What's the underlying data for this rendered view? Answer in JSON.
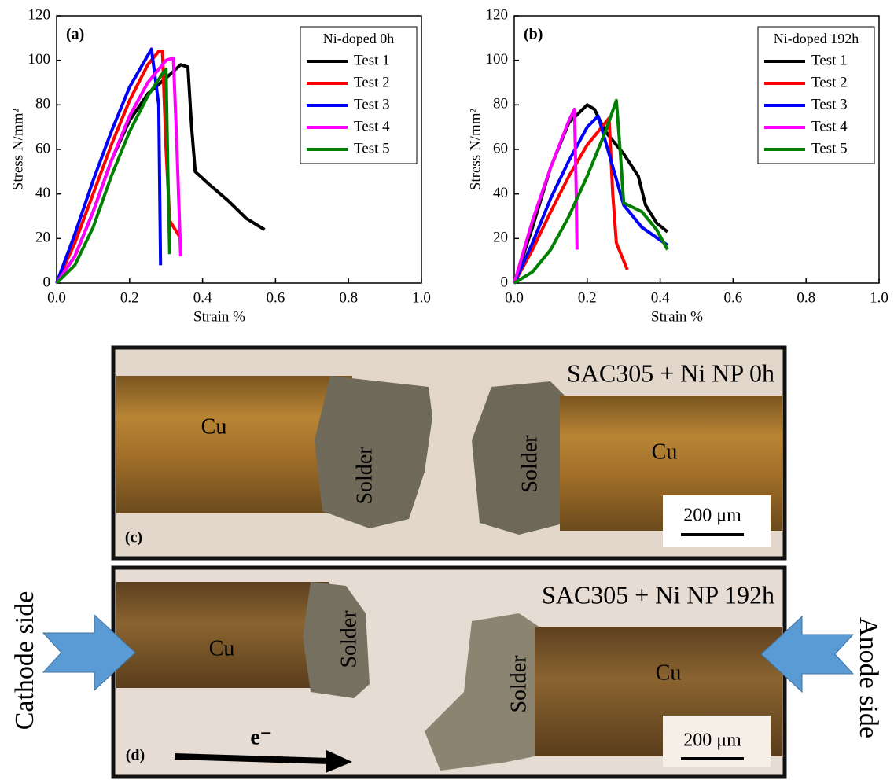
{
  "chart_data": [
    {
      "type": "line",
      "panel": "(a)",
      "legend_title": "Ni-doped 0h",
      "xlabel": "Strain %",
      "ylabel": "Stress N/mm²",
      "xlim": [
        0,
        1
      ],
      "xticks": [
        {
          "value": 0,
          "label": "0.0"
        },
        0.2,
        0.4,
        0.6,
        0.8,
        {
          "value": 1,
          "label": "1.0"
        }
      ],
      "ylim": [
        0,
        120
      ],
      "yticks": [
        0,
        20,
        40,
        60,
        80,
        100,
        120
      ],
      "legend": "upper right",
      "series": [
        {
          "name": "Test 1",
          "color": "#000000",
          "x": [
            0,
            0.05,
            0.1,
            0.15,
            0.2,
            0.25,
            0.3,
            0.34,
            0.36,
            0.37,
            0.38,
            0.42,
            0.47,
            0.52,
            0.57
          ],
          "values": [
            0,
            12,
            32,
            55,
            73,
            85,
            92,
            98,
            97,
            70,
            50,
            44,
            37,
            29,
            24
          ]
        },
        {
          "name": "Test 2",
          "color": "#ff0000",
          "x": [
            0,
            0.05,
            0.1,
            0.15,
            0.2,
            0.25,
            0.28,
            0.29,
            0.3,
            0.31,
            0.34
          ],
          "values": [
            0,
            18,
            40,
            62,
            82,
            98,
            104,
            104,
            60,
            28,
            20
          ]
        },
        {
          "name": "Test 3",
          "color": "#0000ff",
          "x": [
            0,
            0.05,
            0.1,
            0.15,
            0.2,
            0.26,
            0.28,
            0.285
          ],
          "values": [
            0,
            22,
            46,
            68,
            88,
            105,
            80,
            8
          ]
        },
        {
          "name": "Test 4",
          "color": "#ff00ff",
          "x": [
            0,
            0.05,
            0.1,
            0.15,
            0.2,
            0.25,
            0.3,
            0.32,
            0.33,
            0.34
          ],
          "values": [
            0,
            12,
            32,
            55,
            75,
            90,
            100,
            101,
            60,
            12
          ]
        },
        {
          "name": "Test 5",
          "color": "#008000",
          "x": [
            0,
            0.05,
            0.1,
            0.15,
            0.2,
            0.25,
            0.29,
            0.3,
            0.305,
            0.31
          ],
          "values": [
            0,
            8,
            25,
            48,
            68,
            84,
            94,
            96,
            50,
            13
          ]
        }
      ]
    },
    {
      "type": "line",
      "panel": "(b)",
      "legend_title": "Ni-doped 192h",
      "xlabel": "Strain %",
      "ylabel": "Stress N/mm²",
      "xlim": [
        0,
        1
      ],
      "xticks": [
        {
          "value": 0,
          "label": "0.0"
        },
        0.2,
        0.4,
        0.6,
        0.8,
        {
          "value": 1,
          "label": "1.0"
        }
      ],
      "ylim": [
        0,
        120
      ],
      "yticks": [
        0,
        20,
        40,
        60,
        80,
        100,
        120
      ],
      "legend": "upper right",
      "series": [
        {
          "name": "Test 1",
          "color": "#000000",
          "x": [
            0,
            0.05,
            0.1,
            0.15,
            0.2,
            0.22,
            0.25,
            0.3,
            0.34,
            0.36,
            0.39,
            0.42
          ],
          "values": [
            0,
            25,
            52,
            72,
            80,
            78,
            68,
            58,
            48,
            35,
            27,
            23
          ]
        },
        {
          "name": "Test 2",
          "color": "#ff0000",
          "x": [
            0,
            0.05,
            0.1,
            0.15,
            0.2,
            0.25,
            0.26,
            0.27,
            0.28,
            0.31
          ],
          "values": [
            0,
            15,
            32,
            48,
            62,
            72,
            74,
            40,
            18,
            6
          ]
        },
        {
          "name": "Test 3",
          "color": "#0000ff",
          "x": [
            0,
            0.05,
            0.1,
            0.15,
            0.2,
            0.23,
            0.26,
            0.3,
            0.35,
            0.42
          ],
          "values": [
            0,
            18,
            38,
            55,
            70,
            75,
            58,
            35,
            25,
            17
          ]
        },
        {
          "name": "Test 4",
          "color": "#ff00ff",
          "x": [
            0,
            0.05,
            0.1,
            0.15,
            0.165,
            0.17,
            0.172
          ],
          "values": [
            0,
            28,
            52,
            73,
            78,
            40,
            15
          ]
        },
        {
          "name": "Test 5",
          "color": "#008000",
          "x": [
            0,
            0.05,
            0.1,
            0.15,
            0.2,
            0.25,
            0.28,
            0.29,
            0.3,
            0.35,
            0.39,
            0.42
          ],
          "values": [
            0,
            5,
            15,
            30,
            48,
            68,
            82,
            60,
            36,
            32,
            24,
            15
          ]
        }
      ]
    }
  ],
  "photos": [
    {
      "title": "SAC305 + Ni NP 0h",
      "left_cu": "Cu",
      "left_solder": "Solder",
      "right_solder": "Solder",
      "right_cu": "Cu",
      "scale_bar": "200 μm",
      "panel": "(c)"
    },
    {
      "title": "SAC305 + Ni NP 192h",
      "left_cu": "Cu",
      "left_solder": "Solder",
      "right_solder": "Solder",
      "right_cu": "Cu",
      "scale_bar": "200 μm",
      "panel": "(d)",
      "electron": "e⁻"
    }
  ],
  "side_labels": {
    "cathode": "Cathode side",
    "anode": "Anode side"
  }
}
